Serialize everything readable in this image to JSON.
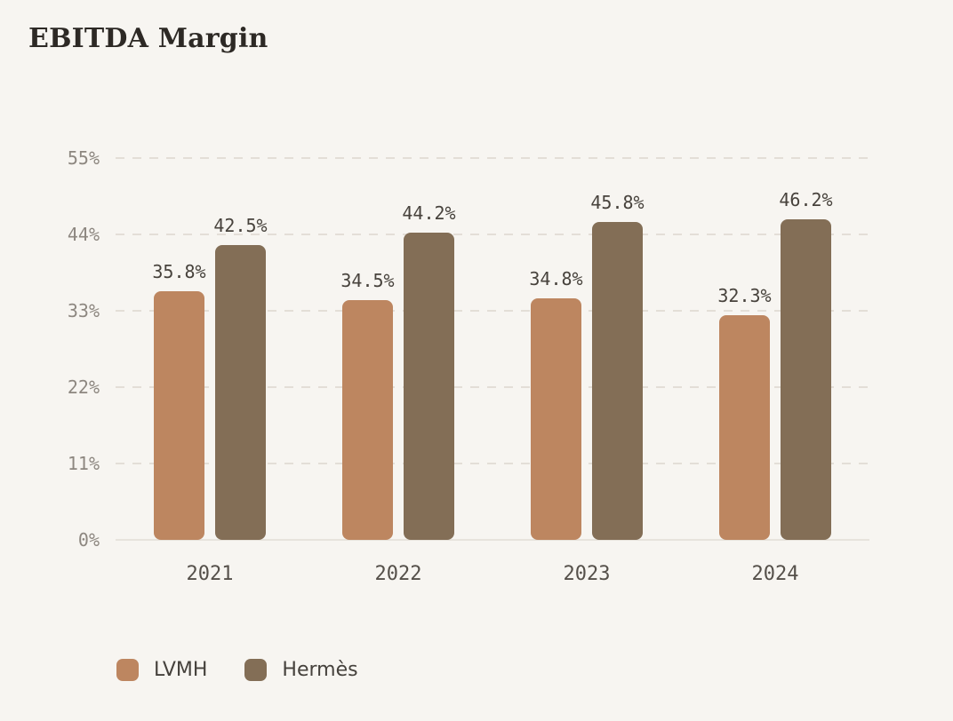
{
  "chart_data": {
    "type": "bar",
    "title": "EBITDA Margin",
    "categories": [
      "2021",
      "2022",
      "2023",
      "2024"
    ],
    "series": [
      {
        "name": "LVMH",
        "color": "#bd8660",
        "values": [
          35.8,
          34.5,
          34.8,
          32.3
        ],
        "labels": [
          "35.8%",
          "34.5%",
          "34.8%",
          "32.3%"
        ]
      },
      {
        "name": "Hermès",
        "color": "#836e56",
        "values": [
          42.5,
          44.2,
          45.8,
          46.2
        ],
        "labels": [
          "42.5%",
          "44.2%",
          "45.8%",
          "46.2%"
        ]
      }
    ],
    "ylim": [
      0,
      55
    ],
    "yticks": [
      0,
      11,
      22,
      33,
      44,
      55
    ],
    "ytick_labels": [
      "0%",
      "11%",
      "22%",
      "33%",
      "44%",
      "55%"
    ],
    "grid": "horizontal-dashed",
    "legend_position": "bottom-left",
    "value_labels_shown": true
  },
  "colors": {
    "background": "#f7f5f1",
    "title_text": "#2d2925",
    "tick_label": "#8d8780",
    "value_label": "#47423c",
    "category_label": "#55504a",
    "gridline": "#e3ded7",
    "axis_line": "#e7e3dc",
    "lvmh_bar": "#bd8660",
    "hermes_bar": "#836e56"
  }
}
